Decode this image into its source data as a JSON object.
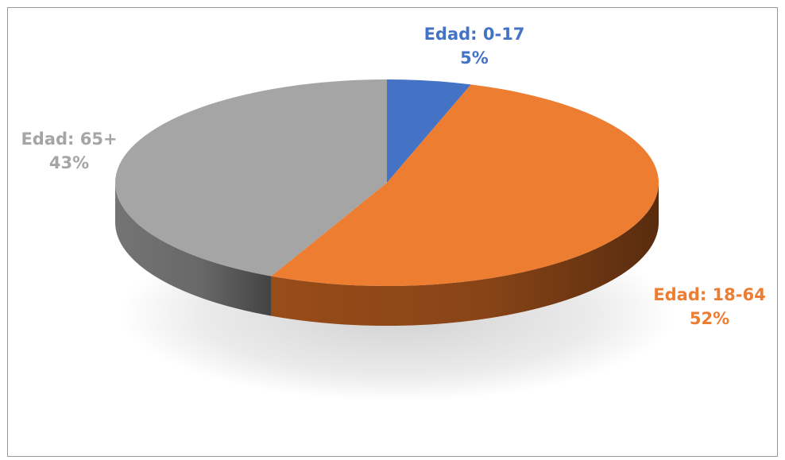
{
  "chart_data": {
    "type": "pie",
    "style": "3d",
    "title": "",
    "slices": [
      {
        "label": "Edad: 0-17",
        "value": 5,
        "value_label": "5%",
        "color": "#4472C4",
        "side_color": "#2E4F8A"
      },
      {
        "label": "Edad: 18-64",
        "value": 52,
        "value_label": "52%",
        "color": "#ED7D31",
        "side_color": "#A0501A"
      },
      {
        "label": "Edad: 65+",
        "value": 43,
        "value_label": "43%",
        "color": "#A5A5A5",
        "side_color": "#7A7A7A"
      }
    ],
    "legend": "none",
    "data_labels": "outside"
  }
}
